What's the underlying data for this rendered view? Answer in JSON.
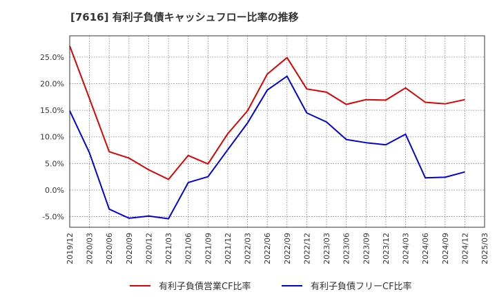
{
  "chart_data": {
    "type": "line",
    "title": "[7616]  有利子負債キャッシュフロー比率の推移",
    "x": [
      "2019/12",
      "2020/03",
      "2020/06",
      "2020/09",
      "2020/12",
      "2021/03",
      "2021/06",
      "2021/09",
      "2021/12",
      "2022/03",
      "2022/06",
      "2022/09",
      "2022/12",
      "2023/03",
      "2023/06",
      "2023/09",
      "2023/12",
      "2024/03",
      "2024/06",
      "2024/09",
      "2024/12",
      "2025/03"
    ],
    "series": [
      {
        "name": "有利子負債営業CF比率",
        "color": "#dd0000",
        "values": [
          27.1,
          17.2,
          7.2,
          6.0,
          3.8,
          2.0,
          6.5,
          4.9,
          10.6,
          14.9,
          21.8,
          24.9,
          19.0,
          18.4,
          16.1,
          17.0,
          16.9,
          19.2,
          16.5,
          16.2,
          17.0,
          null
        ]
      },
      {
        "name": "有利子負債フリーCF比率",
        "color": "#0000dd",
        "values": [
          14.9,
          7.0,
          -3.6,
          -5.3,
          -4.9,
          -5.4,
          1.4,
          2.5,
          7.6,
          12.6,
          18.8,
          21.4,
          14.5,
          12.8,
          9.5,
          8.9,
          8.5,
          10.5,
          2.3,
          2.4,
          3.4,
          null
        ]
      }
    ],
    "yticks": [
      -5.0,
      0.0,
      5.0,
      10.0,
      15.0,
      20.0,
      25.0
    ],
    "ytick_labels": [
      "-5.0%",
      "0.0%",
      "5.0%",
      "10.0%",
      "15.0%",
      "20.0%",
      "25.0%"
    ],
    "ylim": [
      -7.0,
      29.0
    ],
    "grid": true,
    "legend_position": "bottom"
  }
}
